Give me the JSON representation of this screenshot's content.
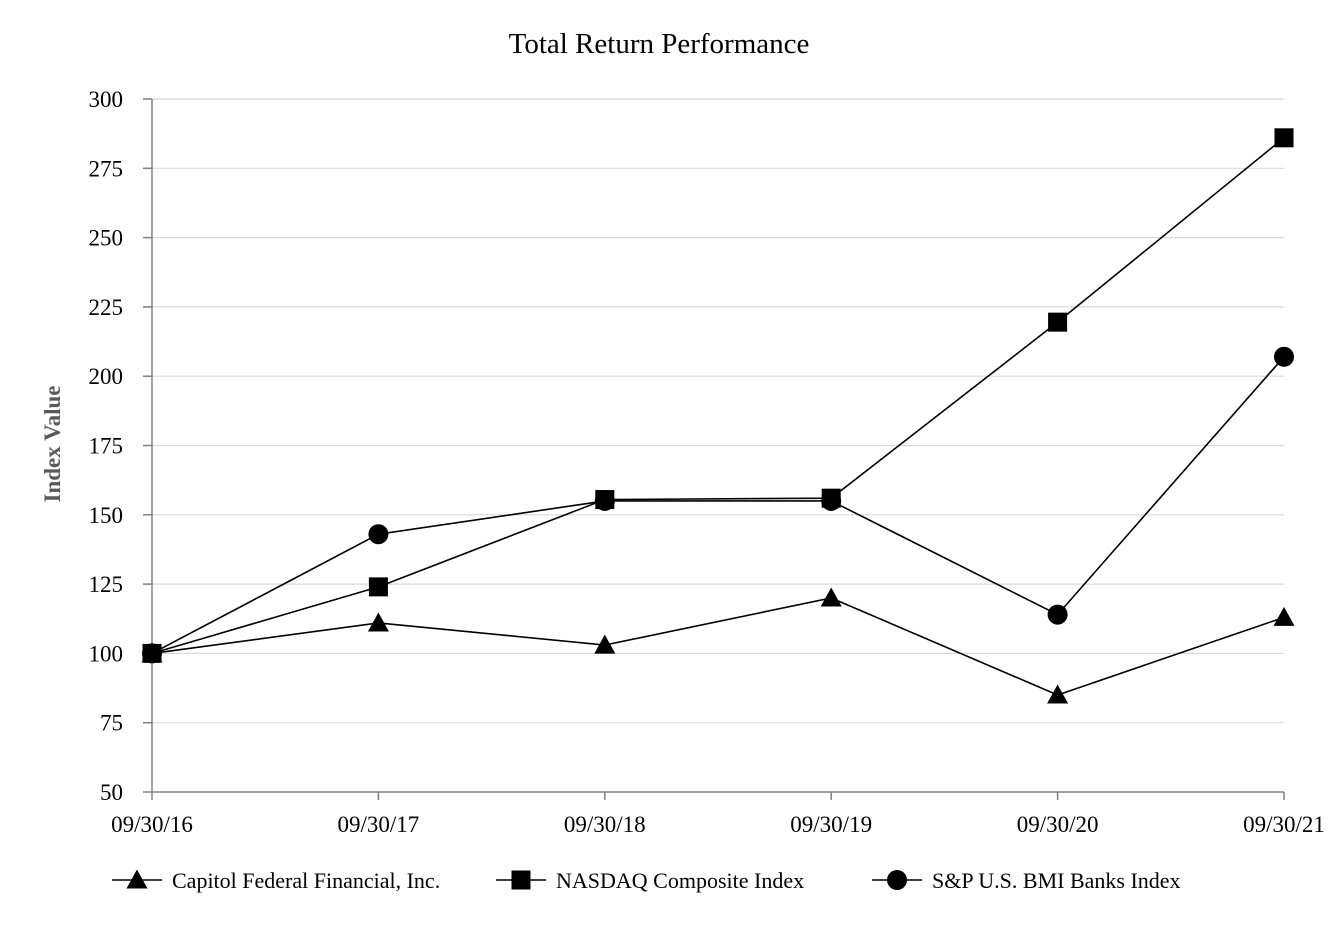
{
  "chart_data": {
    "type": "line",
    "title": "Total Return Performance",
    "xlabel": "",
    "ylabel": "Index Value",
    "categories": [
      "09/30/16",
      "09/30/17",
      "09/30/18",
      "09/30/19",
      "09/30/20",
      "09/30/21"
    ],
    "ylim": [
      50,
      300
    ],
    "yticks": [
      50,
      75,
      100,
      125,
      150,
      175,
      200,
      225,
      250,
      275,
      300
    ],
    "grid": "horizontal",
    "legend_position": "bottom",
    "series": [
      {
        "name": "Capitol Federal Financial, Inc.",
        "marker": "triangle",
        "color": "#000000",
        "values": [
          100,
          111,
          103,
          120,
          85,
          113
        ]
      },
      {
        "name": "NASDAQ Composite Index",
        "marker": "square",
        "color": "#000000",
        "values": [
          100,
          124,
          155.5,
          156,
          219.5,
          286
        ]
      },
      {
        "name": "S&P U.S. BMI Banks Index",
        "marker": "circle",
        "color": "#000000",
        "values": [
          100,
          143,
          155,
          155,
          114,
          207
        ]
      }
    ]
  }
}
